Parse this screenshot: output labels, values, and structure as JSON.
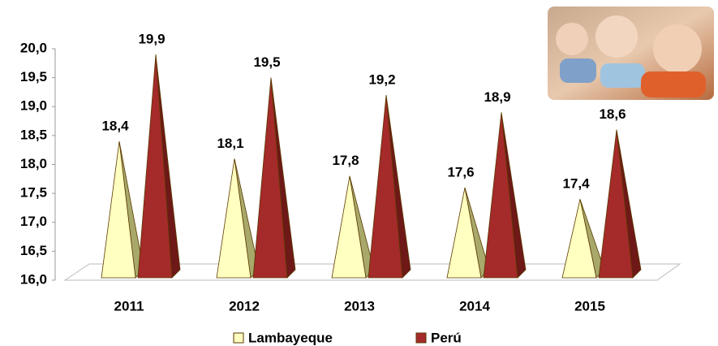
{
  "chart_data": {
    "type": "pyramid",
    "categories": [
      "2011",
      "2012",
      "2013",
      "2014",
      "2015"
    ],
    "series": [
      {
        "name": "Lambayeque",
        "color": "#ffffc0",
        "values": [
          18.4,
          18.1,
          17.8,
          17.6,
          17.4
        ],
        "value_labels": [
          "18,4",
          "18,1",
          "17,8",
          "17,6",
          "17,4"
        ]
      },
      {
        "name": "Perú",
        "color": "#a52a2a",
        "values": [
          19.9,
          19.5,
          19.2,
          18.9,
          18.6
        ],
        "value_labels": [
          "19,9",
          "19,5",
          "19,2",
          "18,9",
          "18,6"
        ]
      }
    ],
    "ylim": [
      16,
      20
    ],
    "yticks": [
      {
        "value": 16,
        "label": "16,0"
      },
      {
        "value": 16.5,
        "label": "16,5"
      },
      {
        "value": 17,
        "label": "17,0"
      },
      {
        "value": 17.5,
        "label": "17,5"
      },
      {
        "value": 18,
        "label": "18,0"
      },
      {
        "value": 18.5,
        "label": "18,5"
      },
      {
        "value": 19,
        "label": "19,0"
      },
      {
        "value": 19.5,
        "label": "19,5"
      },
      {
        "value": 20,
        "label": "20,0"
      }
    ],
    "legend": "bottom"
  }
}
